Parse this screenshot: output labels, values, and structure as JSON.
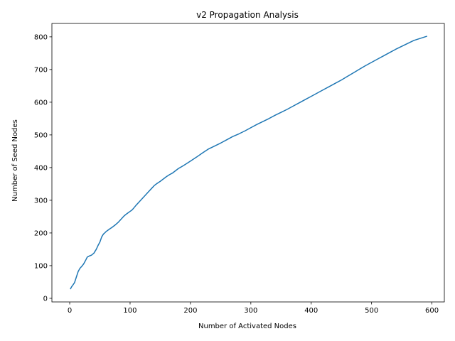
{
  "chart_data": {
    "type": "line",
    "title": "v2 Propagation Analysis",
    "xlabel": "Number of Activated Nodes",
    "ylabel": "Number of Seed Nodes",
    "xlim": [
      -29.5,
      620.5
    ],
    "ylim": [
      -11,
      841
    ],
    "xticks": [
      0,
      100,
      200,
      300,
      400,
      500,
      600
    ],
    "yticks": [
      0,
      100,
      200,
      300,
      400,
      500,
      600,
      700,
      800
    ],
    "grid": false,
    "series": [
      {
        "color": "#1f77b4",
        "x": [
          1,
          3,
          5,
          8,
          11,
          14,
          17,
          20,
          23,
          26,
          29,
          33,
          36,
          40,
          44,
          47,
          50,
          53,
          56,
          58,
          60,
          63,
          66,
          70,
          75,
          80,
          85,
          90,
          94,
          97,
          100,
          103,
          106,
          110,
          115,
          120,
          125,
          130,
          135,
          140,
          145,
          150,
          155,
          160,
          165,
          170,
          175,
          180,
          190,
          200,
          210,
          220,
          230,
          240,
          250,
          260,
          270,
          280,
          290,
          300,
          310,
          320,
          330,
          340,
          350,
          360,
          370,
          380,
          390,
          400,
          410,
          420,
          430,
          440,
          450,
          460,
          470,
          480,
          490,
          500,
          510,
          520,
          530,
          540,
          550,
          560,
          570,
          580,
          592
        ],
        "values": [
          28,
          35,
          40,
          48,
          65,
          82,
          92,
          98,
          105,
          115,
          126,
          130,
          132,
          138,
          150,
          162,
          172,
          188,
          197,
          200,
          204,
          208,
          212,
          217,
          224,
          232,
          242,
          252,
          258,
          262,
          266,
          270,
          276,
          285,
          295,
          305,
          315,
          325,
          335,
          345,
          352,
          358,
          365,
          372,
          378,
          383,
          390,
          397,
          408,
          420,
          432,
          445,
          457,
          466,
          475,
          485,
          495,
          503,
          512,
          522,
          532,
          541,
          550,
          560,
          569,
          578,
          588,
          598,
          608,
          618,
          628,
          638,
          648,
          658,
          668,
          679,
          690,
          701,
          712,
          722,
          732,
          742,
          752,
          762,
          771,
          780,
          789,
          795,
          802
        ]
      }
    ]
  }
}
